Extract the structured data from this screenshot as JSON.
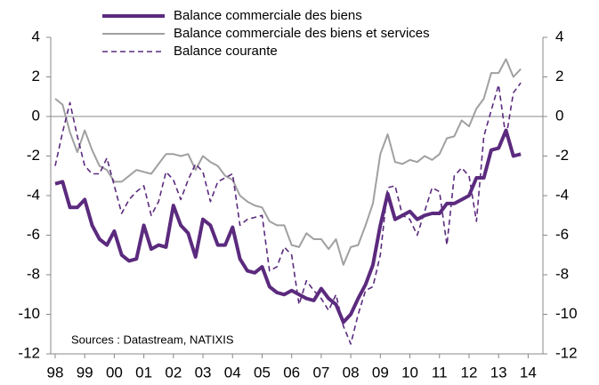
{
  "chart_data": {
    "type": "line",
    "legend": "top",
    "annotation": "Sources : Datastream, NATIXIS",
    "x": [
      1998,
      1998.25,
      1998.5,
      1998.75,
      1999,
      1999.25,
      1999.5,
      1999.75,
      2000,
      2000.25,
      2000.5,
      2000.75,
      2001,
      2001.25,
      2001.5,
      2001.75,
      2002,
      2002.25,
      2002.5,
      2002.75,
      2003,
      2003.25,
      2003.5,
      2003.75,
      2004,
      2004.25,
      2004.5,
      2004.75,
      2005,
      2005.25,
      2005.5,
      2005.75,
      2006,
      2006.25,
      2006.5,
      2006.75,
      2007,
      2007.25,
      2007.5,
      2007.75,
      2008,
      2008.25,
      2008.5,
      2008.75,
      2009,
      2009.25,
      2009.5,
      2009.75,
      2010,
      2010.25,
      2010.5,
      2010.75,
      2011,
      2011.25,
      2011.5,
      2011.75,
      2012,
      2012.25,
      2012.5,
      2012.75,
      2013,
      2013.25,
      2013.5,
      2013.75
    ],
    "series": [
      {
        "name": "Balance commerciale des biens",
        "color": "#5b2a7e",
        "width": 4,
        "dash": false,
        "values": [
          -3.4,
          -3.3,
          -4.6,
          -4.6,
          -4.2,
          -5.5,
          -6.2,
          -6.5,
          -5.8,
          -7.0,
          -7.3,
          -7.2,
          -5.5,
          -6.7,
          -6.5,
          -6.6,
          -4.5,
          -5.5,
          -5.9,
          -7.1,
          -5.2,
          -5.5,
          -6.5,
          -6.5,
          -5.6,
          -7.2,
          -7.8,
          -7.9,
          -7.6,
          -8.6,
          -8.9,
          -9.0,
          -8.8,
          -9.0,
          -9.2,
          -9.3,
          -8.7,
          -9.2,
          -9.5,
          -10.4,
          -10.0,
          -9.2,
          -8.5,
          -7.5,
          -5.5,
          -3.9,
          -5.2,
          -5.0,
          -4.8,
          -5.2,
          -5.0,
          -4.9,
          -4.9,
          -4.4,
          -4.4,
          -4.2,
          -4.0,
          -3.1,
          -3.1,
          -1.7,
          -1.6,
          -0.7,
          -2.0,
          -1.9
        ]
      },
      {
        "name": "Balance commerciale des biens et services",
        "color": "#a0a0a0",
        "width": 2,
        "dash": false,
        "values": [
          0.9,
          0.6,
          -0.8,
          -1.8,
          -0.7,
          -1.7,
          -2.5,
          -2.7,
          -3.3,
          -3.3,
          -3.0,
          -2.7,
          -2.8,
          -2.9,
          -2.4,
          -1.9,
          -1.9,
          -2.0,
          -1.9,
          -2.7,
          -2.0,
          -2.3,
          -2.5,
          -3.0,
          -3.2,
          -4.0,
          -4.3,
          -4.5,
          -4.6,
          -5.3,
          -5.5,
          -5.5,
          -6.5,
          -6.6,
          -5.9,
          -6.2,
          -6.2,
          -6.7,
          -6.2,
          -7.5,
          -6.6,
          -6.5,
          -5.5,
          -4.4,
          -1.9,
          -0.9,
          -2.3,
          -2.4,
          -2.2,
          -2.3,
          -2.0,
          -2.2,
          -1.9,
          -1.1,
          -1.0,
          -0.2,
          -0.5,
          0.4,
          0.9,
          2.2,
          2.2,
          2.9,
          2.0,
          2.4
        ]
      },
      {
        "name": "Balance courante",
        "color": "#5b2a7e",
        "width": 1.6,
        "dash": true,
        "values": [
          -2.5,
          -0.8,
          0.7,
          -1.0,
          -2.5,
          -2.9,
          -2.9,
          -2.1,
          -3.5,
          -4.9,
          -4.2,
          -3.8,
          -3.5,
          -5.0,
          -4.3,
          -2.8,
          -3.2,
          -4.2,
          -3.2,
          -2.4,
          -2.8,
          -4.3,
          -3.3,
          -3.1,
          -2.9,
          -5.5,
          -5.2,
          -5.1,
          -5.0,
          -7.8,
          -7.6,
          -6.6,
          -7.0,
          -9.5,
          -8.3,
          -8.8,
          -9.2,
          -9.8,
          -9.0,
          -10.6,
          -11.5,
          -10.0,
          -8.8,
          -8.6,
          -7.0,
          -3.6,
          -3.5,
          -5.0,
          -5.2,
          -6.0,
          -4.8,
          -3.6,
          -3.8,
          -6.5,
          -3.0,
          -2.6,
          -3.0,
          -5.3,
          -1.0,
          0.3,
          1.6,
          -1.1,
          1.2,
          1.7
        ]
      }
    ],
    "xlim": [
      1997.85,
      2014.5
    ],
    "xticks": [
      {
        "value": 1998,
        "label": "98"
      },
      {
        "value": 1999,
        "label": "99"
      },
      {
        "value": 2000,
        "label": "00"
      },
      {
        "value": 2001,
        "label": "01"
      },
      {
        "value": 2002,
        "label": "02"
      },
      {
        "value": 2003,
        "label": "03"
      },
      {
        "value": 2004,
        "label": "04"
      },
      {
        "value": 2005,
        "label": "05"
      },
      {
        "value": 2006,
        "label": "06"
      },
      {
        "value": 2007,
        "label": "07"
      },
      {
        "value": 2008,
        "label": "08"
      },
      {
        "value": 2009,
        "label": "09"
      },
      {
        "value": 2010,
        "label": "10"
      },
      {
        "value": 2011,
        "label": "11"
      },
      {
        "value": 2012,
        "label": "12"
      },
      {
        "value": 2013,
        "label": "13"
      },
      {
        "value": 2014,
        "label": "14"
      }
    ],
    "ylim": [
      -12,
      4
    ],
    "yticks": [
      -12,
      -10,
      -8,
      -6,
      -4,
      -2,
      0,
      2,
      4
    ],
    "y2lim": [
      -12,
      4
    ],
    "y2ticks": [
      -12,
      -10,
      -8,
      -6,
      -4,
      -2,
      0,
      2,
      4
    ]
  }
}
